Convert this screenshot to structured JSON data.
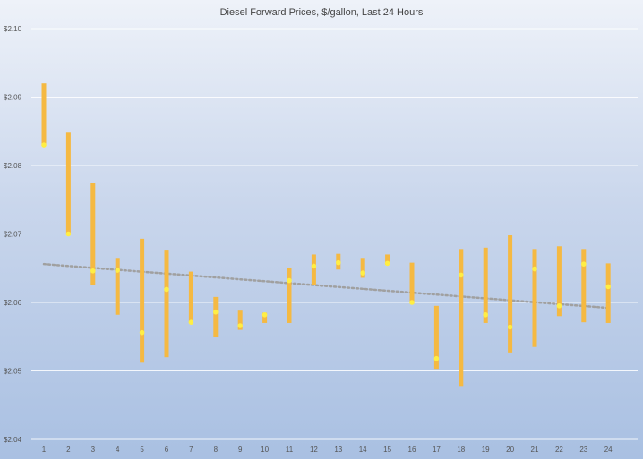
{
  "chart_data": {
    "type": "candlestick",
    "title": "Diesel Forward Prices, $/gallon, Last 24 Hours",
    "xlabel": "",
    "ylabel": "",
    "ylim": [
      2.04,
      2.1
    ],
    "y_ticks": [
      "$2.04",
      "$2.05",
      "$2.06",
      "$2.07",
      "$2.08",
      "$2.09",
      "$2.10"
    ],
    "y_tick_values": [
      2.04,
      2.05,
      2.06,
      2.07,
      2.08,
      2.09,
      2.1
    ],
    "categories": [
      "1",
      "2",
      "3",
      "4",
      "5",
      "6",
      "7",
      "8",
      "9",
      "10",
      "11",
      "12",
      "13",
      "14",
      "15",
      "16",
      "17",
      "18",
      "19",
      "20",
      "21",
      "22",
      "23",
      "24"
    ],
    "high": [
      2.092,
      2.0848,
      2.0775,
      2.0665,
      2.0693,
      2.0677,
      2.0645,
      2.0608,
      2.0588,
      2.0585,
      2.0651,
      2.067,
      2.0671,
      2.0665,
      2.067,
      2.0658,
      2.0595,
      2.0678,
      2.068,
      2.0698,
      2.0678,
      2.0682,
      2.0678,
      2.0657
    ],
    "low": [
      2.083,
      2.07,
      2.0625,
      2.0582,
      2.0512,
      2.052,
      2.057,
      2.0549,
      2.056,
      2.057,
      2.057,
      2.0626,
      2.0648,
      2.0636,
      2.0655,
      2.0598,
      2.0503,
      2.0478,
      2.057,
      2.0527,
      2.0535,
      2.058,
      2.0571,
      2.057
    ],
    "close": [
      2.083,
      2.07,
      2.0646,
      2.0647,
      2.0556,
      2.0619,
      2.0571,
      2.0586,
      2.0566,
      2.0582,
      2.0632,
      2.0653,
      2.0658,
      2.0643,
      2.0657,
      2.06,
      2.0518,
      2.064,
      2.0582,
      2.0564,
      2.0649,
      2.0595,
      2.0656,
      2.0623
    ],
    "trendline": {
      "style": "dotted",
      "start": 2.0656,
      "end": 2.0592
    },
    "grid": true,
    "legend": "none",
    "colors": {
      "range_bar": "#f5b942",
      "close_point": "#ffee44",
      "trendline": "#a0a0a0",
      "gridline": "#ffffff"
    }
  }
}
